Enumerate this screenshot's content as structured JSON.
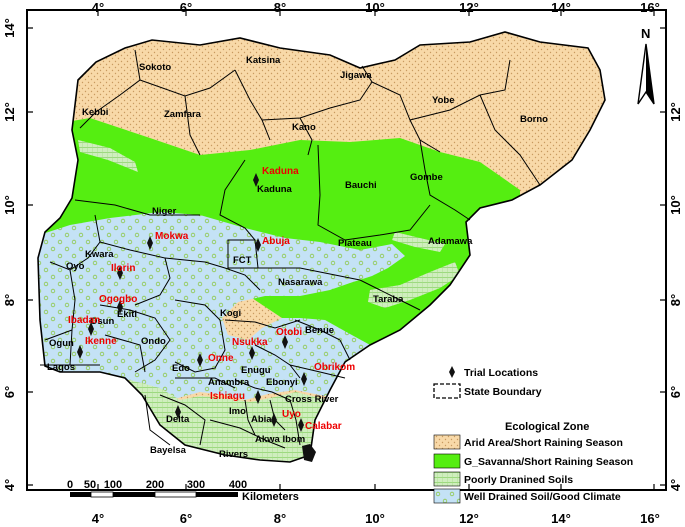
{
  "colors": {
    "arid": "#f8d9a8",
    "arid_dots": "#c89a60",
    "savanna": "#55ee11",
    "poorly_drained": "#cfeebe",
    "well_drained": "#c4e2f6",
    "site_label": "#ee0000",
    "boundary": "#000000"
  },
  "axes": {
    "x_ticks": [
      "4°",
      "6°",
      "8°",
      "10°",
      "12°",
      "14°",
      "16°"
    ],
    "y_ticks": [
      "14°",
      "12°",
      "10°",
      "8°",
      "6°",
      "4°"
    ]
  },
  "north_arrow_label": "N",
  "states": [
    "Sokoto",
    "Katsina",
    "Jigawa",
    "Yobe",
    "Borno",
    "Kebbi",
    "Zamfara",
    "Kano",
    "Kaduna",
    "Bauchi",
    "Gombe",
    "Niger",
    "Plateau",
    "Adamawa",
    "Kwara",
    "FCT",
    "Nasarawa",
    "Oyo",
    "Ekiti",
    "Kogi",
    "Taraba",
    "Benue",
    "Osun",
    "Ondo",
    "Ogun",
    "Lagos",
    "Edo",
    "Enugu",
    "Anambra",
    "Ebonyi",
    "Imo",
    "Cross River",
    "Delta",
    "Abia",
    "Akwa Ibom",
    "Bayelsa",
    "Rivers"
  ],
  "trial_locations": [
    "Kaduna",
    "Mokwa",
    "Abuja",
    "Ilorin",
    "Ogogbo",
    "Ibadan",
    "Ikenne",
    "Nsukka",
    "Otobi",
    "Onne",
    "Obrikom",
    "Ishiagu",
    "Uyo",
    "Calabar"
  ],
  "legend": {
    "trial_locations": "Trial Locations",
    "state_boundary": "State Boundary",
    "zone_title": "Ecological Zone",
    "zones": [
      "Arid Area/Short Raining Season",
      "G_Savanna/Short Raining Season",
      "Poorly Dranined Soils",
      "Well Drained Soil/Good Climate"
    ]
  },
  "scalebar": {
    "ticks": [
      "0",
      "50",
      "100",
      "200",
      "300",
      "400"
    ],
    "unit": "Kilometers"
  }
}
